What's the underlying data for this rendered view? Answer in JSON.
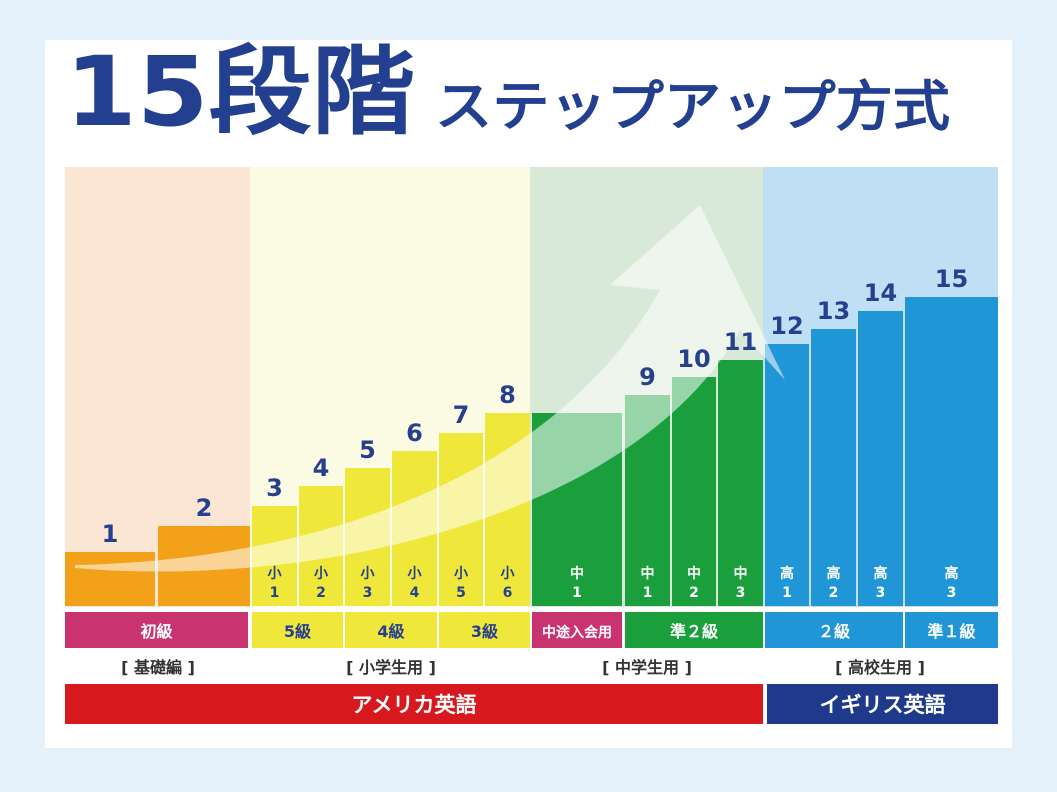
{
  "header": {
    "title_main": "15段階",
    "title_sub": "ステップアップ方式"
  },
  "steps": [
    {
      "number": 1
    },
    {
      "number": 2
    },
    {
      "number": 3,
      "sub": [
        "小",
        "1"
      ]
    },
    {
      "number": 4,
      "sub": [
        "小",
        "2"
      ]
    },
    {
      "number": 5,
      "sub": [
        "小",
        "3"
      ]
    },
    {
      "number": 6,
      "sub": [
        "小",
        "4"
      ]
    },
    {
      "number": 7,
      "sub": [
        "小",
        "5"
      ]
    },
    {
      "number": 8,
      "sub": [
        "小",
        "6"
      ]
    },
    {
      "sub": [
        "中",
        "1"
      ]
    },
    {
      "number": 9,
      "sub": [
        "中",
        "1"
      ]
    },
    {
      "number": 10,
      "sub": [
        "中",
        "2"
      ]
    },
    {
      "number": 11,
      "sub": [
        "中",
        "3"
      ]
    },
    {
      "number": 12,
      "sub": [
        "高",
        "1"
      ]
    },
    {
      "number": 13,
      "sub": [
        "高",
        "2"
      ]
    },
    {
      "number": 14,
      "sub": [
        "高",
        "3"
      ]
    },
    {
      "number": 15,
      "sub": [
        "高",
        "3"
      ]
    }
  ],
  "levels": [
    "初級",
    "5級",
    "4級",
    "3級",
    "中途入会用",
    "準２級",
    "２級",
    "準１級"
  ],
  "groups": [
    "[ 基礎編 ]",
    "[ 小学生用 ]",
    "[ 中学生用 ]",
    "[ 高校生用 ]"
  ],
  "courses": [
    "アメリカ英語",
    "イギリス英語"
  ]
}
